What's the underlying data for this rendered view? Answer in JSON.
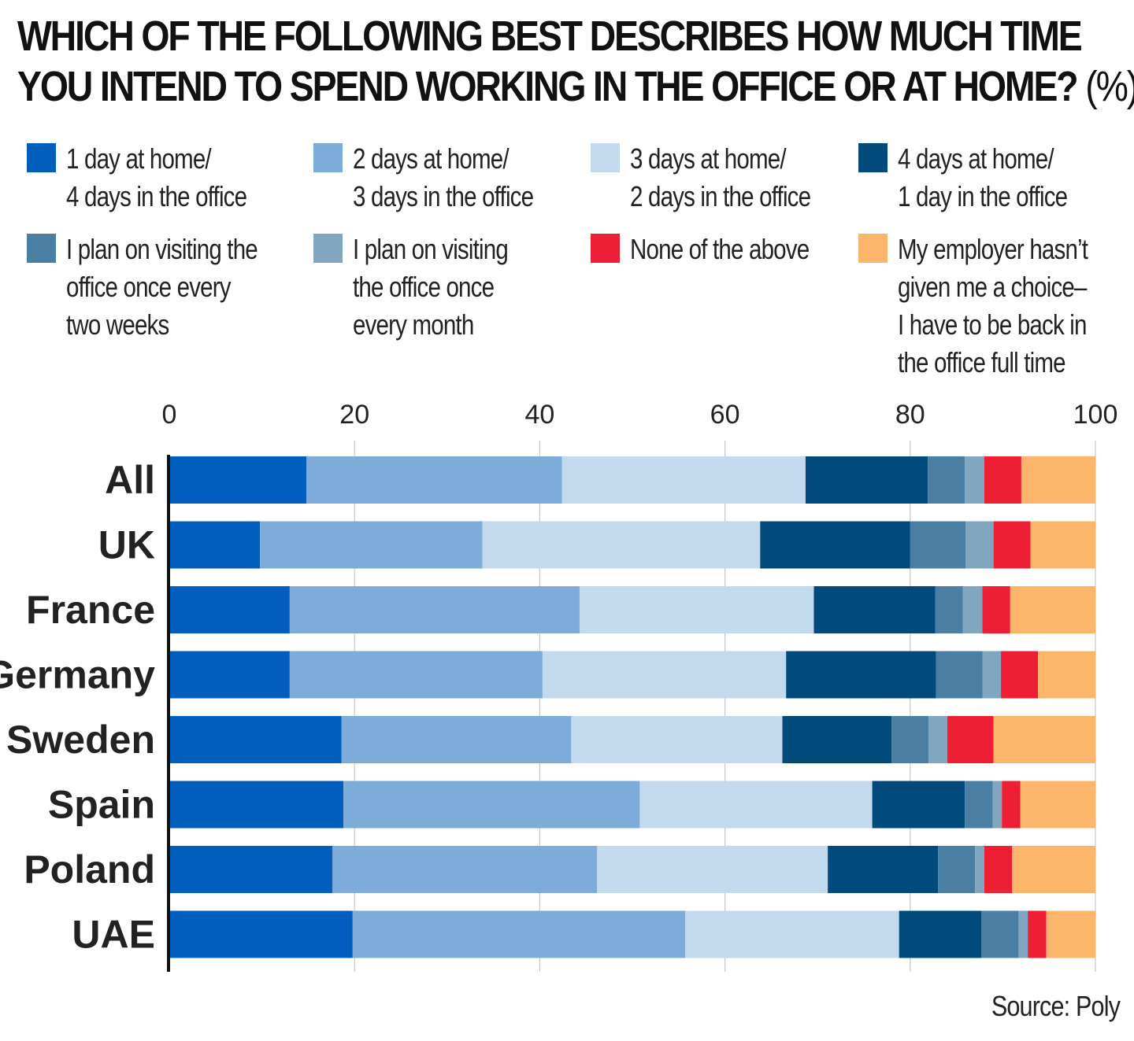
{
  "title": {
    "line1": "WHICH OF THE FOLLOWING BEST DESCRIBES HOW MUCH TIME",
    "line2": "YOU INTEND TO SPEND WORKING IN THE OFFICE OR AT HOME?",
    "unit": "(%)"
  },
  "source": "Source: Poly",
  "chart_data": {
    "type": "bar",
    "orientation": "horizontal",
    "stacked": true,
    "title": "WHICH OF THE FOLLOWING BEST DESCRIBES HOW MUCH TIME YOU INTEND TO SPEND WORKING IN THE OFFICE OR AT HOME? (%)",
    "xlim": [
      0,
      100
    ],
    "x_ticks": [
      "0",
      "20",
      "40",
      "60",
      "80",
      "100"
    ],
    "x_axis_position": "top",
    "grid": true,
    "legend_position": "top",
    "categories": [
      "All",
      "UK",
      "France",
      "Germany",
      "Sweden",
      "Spain",
      "Poland",
      "UAE"
    ],
    "series": [
      {
        "name": "1 day at home/\n4 days in the office",
        "color": "#005ebd",
        "values": [
          14.8,
          9.8,
          13.0,
          13.0,
          18.6,
          18.8,
          17.6,
          19.8
        ]
      },
      {
        "name": "2 days at home/\n3 days in the office",
        "color": "#7eacda",
        "values": [
          27.6,
          24.0,
          31.3,
          27.3,
          24.8,
          32.0,
          28.6,
          35.9
        ]
      },
      {
        "name": "3 days at home/\n2 days in the office",
        "color": "#c3d9ee",
        "values": [
          26.3,
          30.0,
          25.3,
          26.3,
          22.8,
          25.1,
          24.9,
          23.1
        ]
      },
      {
        "name": "4 days at home/\n1 day in the office",
        "color": "#004b7b",
        "values": [
          13.2,
          16.2,
          13.1,
          16.2,
          11.8,
          10.0,
          11.9,
          8.9
        ]
      },
      {
        "name": "I plan on visiting the\noffice once every\ntwo weeks",
        "color": "#4a7fa3",
        "values": [
          4.0,
          6.0,
          3.0,
          5.0,
          4.0,
          3.0,
          4.0,
          4.0
        ]
      },
      {
        "name": "I plan on visiting\nthe office once\nevery month",
        "color": "#81a6bf",
        "values": [
          2.1,
          3.0,
          2.1,
          2.0,
          2.0,
          1.0,
          1.0,
          1.0
        ]
      },
      {
        "name": "None of the above",
        "color": "#ee1f35",
        "values": [
          4.0,
          4.0,
          3.0,
          4.0,
          5.0,
          2.0,
          3.0,
          2.0
        ]
      },
      {
        "name": "My employer hasn’t\ngiven me a choice–\nI have to be back in\nthe office full time",
        "color": "#fdb56b",
        "values": [
          8.0,
          7.0,
          9.2,
          6.2,
          11.0,
          8.1,
          9.0,
          5.3
        ]
      }
    ]
  }
}
